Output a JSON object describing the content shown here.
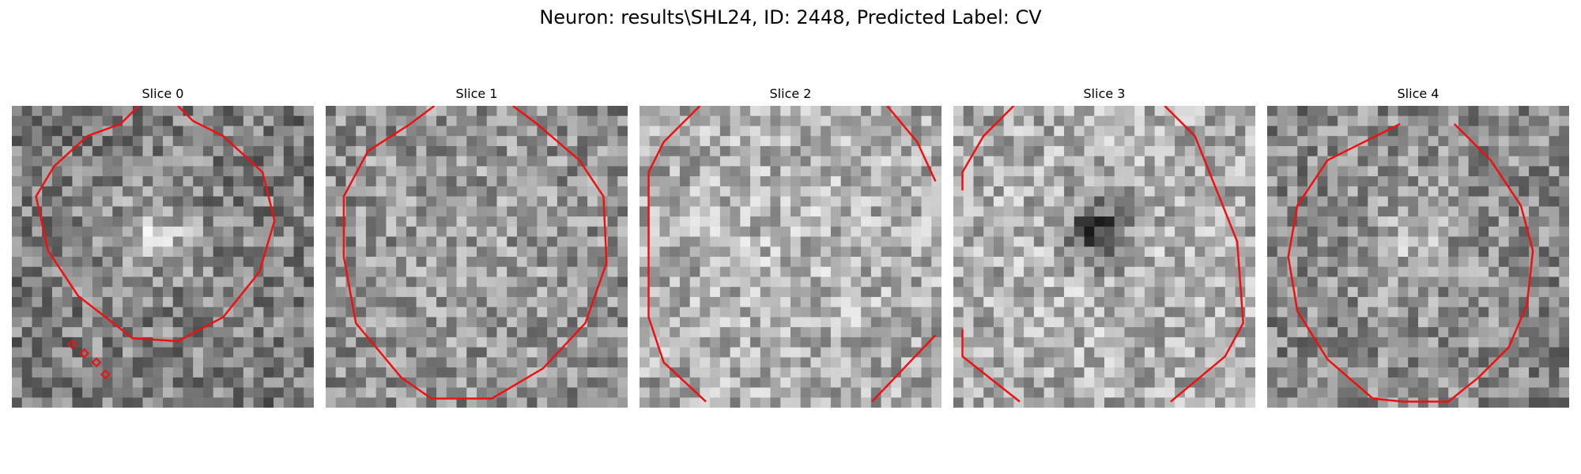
{
  "figure": {
    "title": "Neuron: results\\SHL24, ID: 2448, Predicted Label: CV"
  },
  "panels": [
    {
      "title": "Slice 0",
      "brightness": 0.5,
      "blob_strength": 0.25,
      "contour": [
        [
          0.42,
          0.0
        ],
        [
          0.36,
          0.06
        ],
        [
          0.25,
          0.1
        ],
        [
          0.14,
          0.2
        ],
        [
          0.08,
          0.3
        ],
        [
          0.12,
          0.48
        ],
        [
          0.22,
          0.63
        ],
        [
          0.4,
          0.77
        ],
        [
          0.55,
          0.78
        ],
        [
          0.7,
          0.7
        ],
        [
          0.82,
          0.55
        ],
        [
          0.87,
          0.38
        ],
        [
          0.83,
          0.22
        ],
        [
          0.7,
          0.1
        ],
        [
          0.6,
          0.05
        ],
        [
          0.55,
          0.0
        ]
      ],
      "contour_closed": false,
      "markers": [
        [
          0.2,
          0.79
        ],
        [
          0.24,
          0.82
        ],
        [
          0.28,
          0.85
        ],
        [
          0.31,
          0.89
        ]
      ]
    },
    {
      "title": "Slice 1",
      "brightness": 0.58,
      "blob_strength": 0.0,
      "contour": [
        [
          0.36,
          0.0
        ],
        [
          0.28,
          0.06
        ],
        [
          0.14,
          0.15
        ],
        [
          0.06,
          0.3
        ],
        [
          0.06,
          0.5
        ],
        [
          0.1,
          0.72
        ],
        [
          0.25,
          0.9
        ],
        [
          0.35,
          0.97
        ],
        [
          0.55,
          0.97
        ],
        [
          0.72,
          0.87
        ],
        [
          0.86,
          0.72
        ],
        [
          0.93,
          0.52
        ],
        [
          0.92,
          0.3
        ],
        [
          0.84,
          0.18
        ],
        [
          0.7,
          0.06
        ],
        [
          0.62,
          0.0
        ]
      ],
      "contour_closed": false,
      "markers": []
    },
    {
      "title": "Slice 2",
      "brightness": 0.68,
      "blob_strength": 0.0,
      "contours": [
        [
          [
            0.2,
            0.0
          ],
          [
            0.08,
            0.12
          ],
          [
            0.03,
            0.22
          ],
          [
            0.03,
            0.7
          ],
          [
            0.08,
            0.85
          ],
          [
            0.22,
            0.98
          ]
        ],
        [
          [
            0.82,
            0.0
          ],
          [
            0.92,
            0.12
          ],
          [
            0.98,
            0.25
          ]
        ],
        [
          [
            0.77,
            0.98
          ],
          [
            0.98,
            0.76
          ]
        ]
      ],
      "markers": []
    },
    {
      "title": "Slice 3",
      "brightness": 0.68,
      "blob_strength": -0.45,
      "contours": [
        [
          [
            0.2,
            0.0
          ],
          [
            0.1,
            0.1
          ],
          [
            0.03,
            0.22
          ],
          [
            0.03,
            0.28
          ]
        ],
        [
          [
            0.03,
            0.74
          ],
          [
            0.03,
            0.83
          ],
          [
            0.22,
            0.98
          ]
        ],
        [
          [
            0.7,
            0.0
          ],
          [
            0.8,
            0.1
          ],
          [
            0.88,
            0.3
          ],
          [
            0.94,
            0.45
          ],
          [
            0.96,
            0.72
          ],
          [
            0.9,
            0.83
          ],
          [
            0.72,
            0.98
          ]
        ]
      ],
      "markers": []
    },
    {
      "title": "Slice 4",
      "brightness": 0.55,
      "blob_strength": 0.15,
      "contour": [
        [
          0.44,
          0.06
        ],
        [
          0.36,
          0.1
        ],
        [
          0.2,
          0.18
        ],
        [
          0.1,
          0.33
        ],
        [
          0.07,
          0.5
        ],
        [
          0.1,
          0.68
        ],
        [
          0.2,
          0.84
        ],
        [
          0.35,
          0.97
        ],
        [
          0.45,
          0.98
        ],
        [
          0.6,
          0.98
        ],
        [
          0.7,
          0.9
        ],
        [
          0.8,
          0.8
        ],
        [
          0.86,
          0.66
        ],
        [
          0.88,
          0.48
        ],
        [
          0.84,
          0.33
        ],
        [
          0.74,
          0.18
        ],
        [
          0.62,
          0.06
        ]
      ],
      "contour_closed": false,
      "markers": []
    }
  ]
}
